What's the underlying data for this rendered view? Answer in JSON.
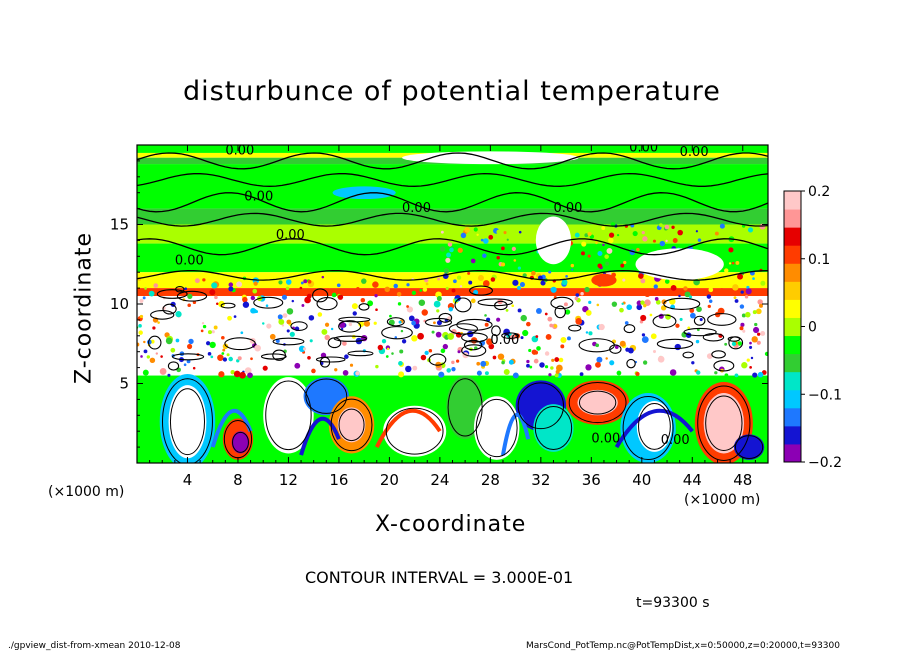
{
  "chart_data": {
    "type": "heatmap",
    "title": "disturbunce of potential temperature",
    "xlabel": "X-coordinate",
    "ylabel": "Z-coordinate",
    "x_unit": "(×1000 m)",
    "xlim": [
      0,
      50
    ],
    "ylim": [
      0,
      20
    ],
    "x_ticks": [
      "4",
      "8",
      "12",
      "16",
      "20",
      "24",
      "28",
      "32",
      "36",
      "40",
      "44",
      "48"
    ],
    "y_ticks": [
      "5",
      "10",
      "15"
    ],
    "colorbar": {
      "range": [
        -0.2,
        0.2
      ],
      "ticks": [
        "0.2",
        "0.1",
        "0",
        "−0.1",
        "−0.2"
      ],
      "colors": [
        "#8c00b4",
        "#1414d2",
        "#1e78ff",
        "#00c8ff",
        "#00e6c8",
        "#32cd32",
        "#00ff00",
        "#aaff00",
        "#ffff00",
        "#ffcc00",
        "#ff8c00",
        "#ff3c00",
        "#e60000",
        "#ff9696",
        "#ffc8c8"
      ]
    },
    "contour_labels": [
      "0.00",
      "0.00",
      "0.00",
      "0.00",
      "0.00",
      "0.00",
      "0.00",
      "0.00",
      "0.00",
      "0.00",
      "0.00"
    ],
    "contour_interval": "CONTOUR INTERVAL = 3.000E-01",
    "time": "t=93300 s"
  },
  "footer": {
    "left": "./gpview_dist-from-xmean   2010-12-08",
    "right": "MarsCond_PotTemp.nc@PotTempDist,x=0:50000,z=0:20000,t=93300"
  },
  "layers": [
    {
      "z": [
        19.5,
        20
      ],
      "color": "#00ff00"
    },
    {
      "z": [
        19.2,
        19.5
      ],
      "color": "#ffff00"
    },
    {
      "z": [
        18.8,
        19.2
      ],
      "color": "#32cd32"
    },
    {
      "z": [
        16.0,
        18.8
      ],
      "color": "#00ff00"
    },
    {
      "z": [
        15.0,
        16.0
      ],
      "color": "#32cd32"
    },
    {
      "z": [
        13.8,
        15.0
      ],
      "color": "#aaff00"
    },
    {
      "z": [
        12.0,
        13.8
      ],
      "color": "#00ff00"
    },
    {
      "z": [
        11.0,
        12.0
      ],
      "color": "#ffff00"
    },
    {
      "z": [
        10.5,
        11.0
      ],
      "color": "#ff3c00"
    },
    {
      "z": [
        9.8,
        10.5
      ],
      "color": "#ffffff"
    },
    {
      "z": [
        5.5,
        9.8
      ],
      "color": "#ffffff"
    },
    {
      "z": [
        0,
        5.5
      ],
      "color": "#00ff00"
    }
  ],
  "blobs": [
    {
      "cx": 4,
      "cz": 2.6,
      "rx": 2.2,
      "rz": 3.0,
      "color": "#00c8ff"
    },
    {
      "cx": 4,
      "cz": 2.6,
      "rx": 1.5,
      "rz": 2.3,
      "color": "#ffffff"
    },
    {
      "cx": 8,
      "cz": 1.5,
      "rx": 1.2,
      "rz": 1.3,
      "color": "#ff3c00"
    },
    {
      "cx": 8.2,
      "cz": 1.3,
      "rx": 0.7,
      "rz": 0.7,
      "color": "#8c00b4"
    },
    {
      "cx": 12,
      "cz": 3.0,
      "rx": 2.0,
      "rz": 2.4,
      "color": "#ffffff"
    },
    {
      "cx": 15,
      "cz": 4.2,
      "rx": 1.8,
      "rz": 1.2,
      "color": "#1e78ff"
    },
    {
      "cx": 17,
      "cz": 2.4,
      "rx": 1.8,
      "rz": 1.8,
      "color": "#ff8c00"
    },
    {
      "cx": 17,
      "cz": 2.4,
      "rx": 1.1,
      "rz": 1.1,
      "color": "#ffc8c8"
    },
    {
      "cx": 22,
      "cz": 2.0,
      "rx": 2.5,
      "rz": 1.6,
      "color": "#ffffff"
    },
    {
      "cx": 26,
      "cz": 3.5,
      "rx": 1.5,
      "rz": 2.0,
      "color": "#32cd32"
    },
    {
      "cx": 28.5,
      "cz": 2.2,
      "rx": 1.8,
      "rz": 2.0,
      "color": "#ffffff"
    },
    {
      "cx": 32,
      "cz": 3.6,
      "rx": 2.0,
      "rz": 1.6,
      "color": "#1414d2"
    },
    {
      "cx": 33,
      "cz": 2.2,
      "rx": 1.6,
      "rz": 1.5,
      "color": "#00e6c8"
    },
    {
      "cx": 36.5,
      "cz": 3.8,
      "rx": 2.5,
      "rz": 1.4,
      "color": "#ff3c00"
    },
    {
      "cx": 36.5,
      "cz": 3.8,
      "rx": 1.6,
      "rz": 0.8,
      "color": "#ffc8c8"
    },
    {
      "cx": 40.5,
      "cz": 2.2,
      "rx": 2.2,
      "rz": 2.2,
      "color": "#00c8ff"
    },
    {
      "cx": 41,
      "cz": 2.3,
      "rx": 1.4,
      "rz": 1.6,
      "color": "#ffffff"
    },
    {
      "cx": 46.5,
      "cz": 2.5,
      "rx": 2.3,
      "rz": 2.6,
      "color": "#ff3c00"
    },
    {
      "cx": 46.5,
      "cz": 2.5,
      "rx": 1.6,
      "rz": 1.9,
      "color": "#ffc8c8"
    },
    {
      "cx": 48.5,
      "cz": 1.0,
      "rx": 1.2,
      "rz": 0.8,
      "color": "#1414d2"
    },
    {
      "cx": 37,
      "cz": 11.5,
      "rx": 1.0,
      "rz": 0.4,
      "color": "#ff3c00"
    },
    {
      "cx": 43,
      "cz": 12.5,
      "rx": 3.5,
      "rz": 1.0,
      "color": "#ffffff"
    },
    {
      "cx": 33,
      "cz": 14.0,
      "rx": 1.4,
      "rz": 1.5,
      "color": "#ffffff"
    },
    {
      "cx": 18,
      "cz": 17.0,
      "rx": 2.5,
      "rz": 0.4,
      "color": "#00c8ff"
    },
    {
      "cx": 28,
      "cz": 19.2,
      "rx": 7.0,
      "rz": 0.4,
      "color": "#ffffff"
    }
  ]
}
